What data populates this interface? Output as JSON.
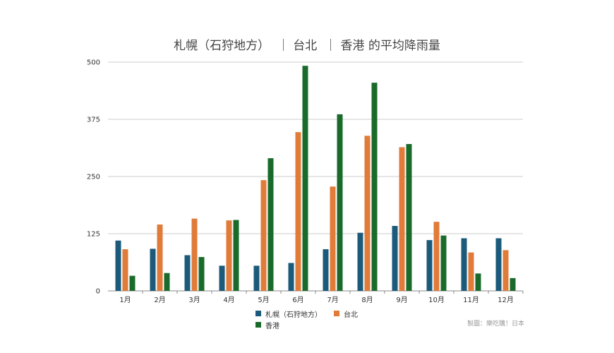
{
  "chart_data": {
    "type": "bar",
    "title": "札幌（石狩地方）  ｜ 台北  ｜ 香港 的平均降雨量",
    "categories": [
      "1月",
      "2月",
      "3月",
      "4月",
      "5月",
      "6月",
      "7月",
      "8月",
      "9月",
      "10月",
      "11月",
      "12月"
    ],
    "ylim": [
      0,
      500
    ],
    "yticks": [
      0,
      125,
      250,
      375,
      500
    ],
    "grid": true,
    "legend_position": "bottom",
    "series": [
      {
        "name": "札幌（石狩地方）",
        "color": "#1b5a7a",
        "values": [
          110,
          92,
          78,
          55,
          55,
          61,
          91,
          127,
          142,
          111,
          115,
          115
        ]
      },
      {
        "name": "台北",
        "color": "#e07b39",
        "values": [
          91,
          145,
          158,
          154,
          242,
          347,
          228,
          339,
          314,
          151,
          84,
          89
        ]
      },
      {
        "name": "香港",
        "color": "#1a6b2b",
        "values": [
          33,
          39,
          74,
          155,
          290,
          492,
          386,
          455,
          321,
          121,
          38,
          28
        ]
      }
    ]
  },
  "credit": "製圖：樂吃購！日本"
}
